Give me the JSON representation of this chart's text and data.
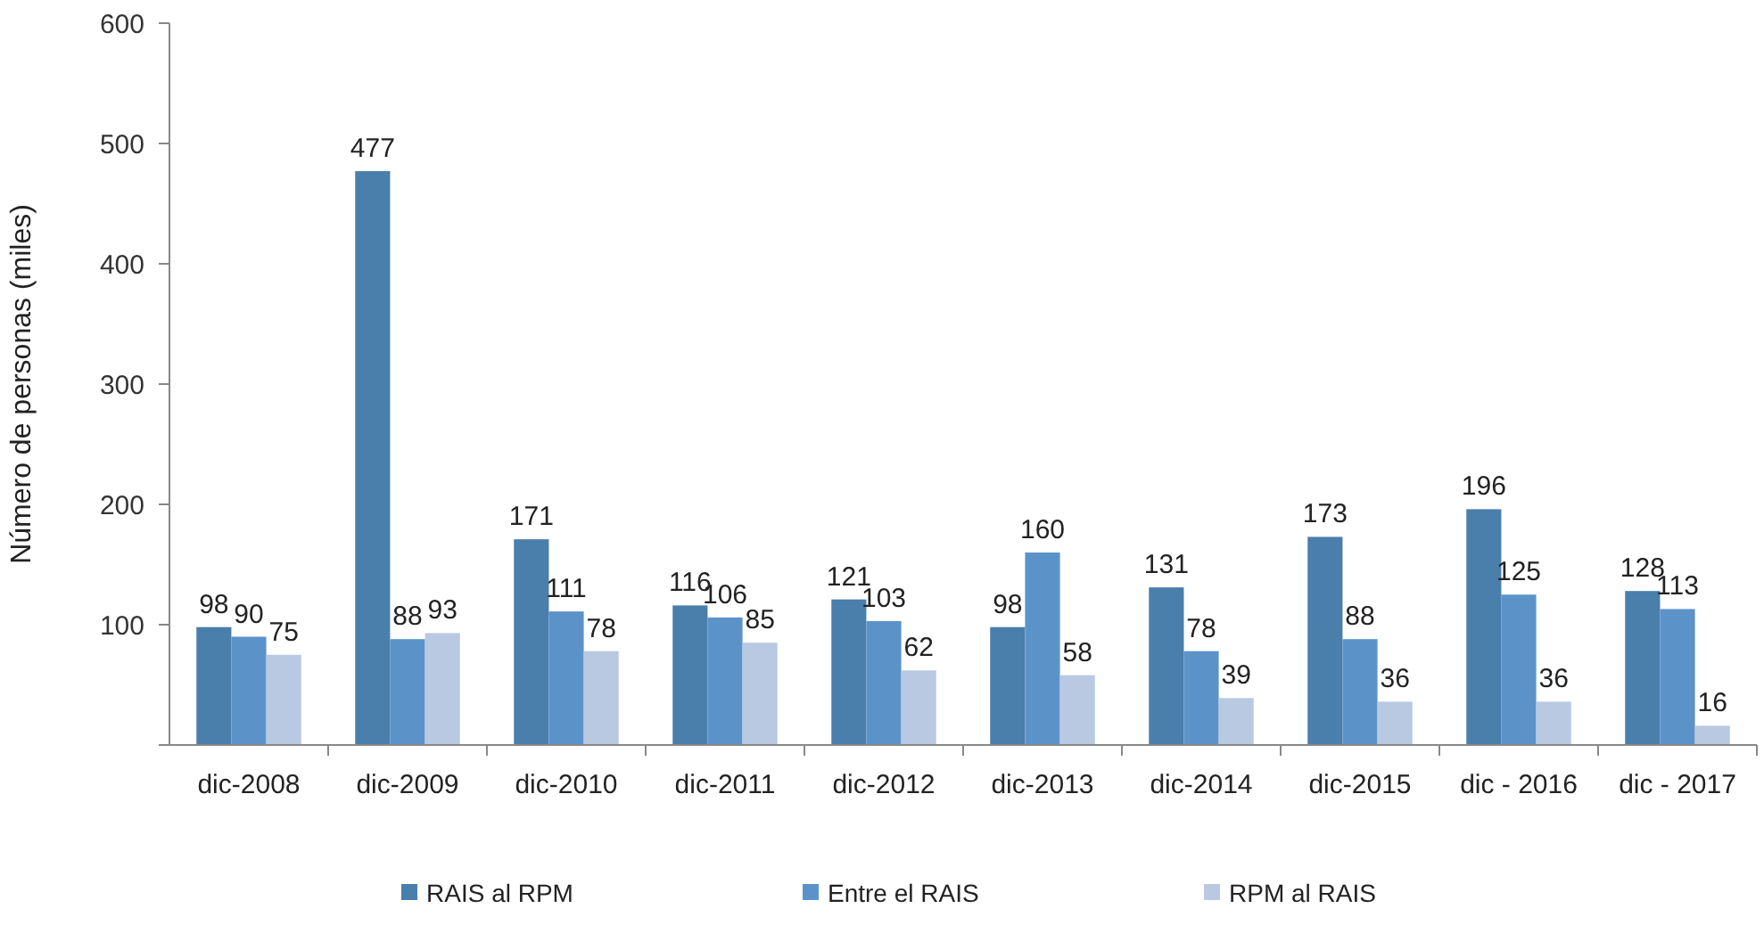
{
  "chart_data": {
    "type": "bar",
    "ylabel": "Número de personas (miles)",
    "categories": [
      "dic-2008",
      "dic-2009",
      "dic-2010",
      "dic-2011",
      "dic-2012",
      "dic-2013",
      "dic-2014",
      "dic-2015",
      "dic - 2016",
      "dic - 2017"
    ],
    "series": [
      {
        "name": "RAIS al RPM",
        "color": "#4a7eab",
        "values": [
          98,
          477,
          171,
          116,
          121,
          98,
          131,
          173,
          196,
          128
        ]
      },
      {
        "name": "Entre el RAIS",
        "color": "#5b93c9",
        "values": [
          90,
          88,
          111,
          106,
          103,
          160,
          78,
          88,
          125,
          113
        ]
      },
      {
        "name": "RPM al RAIS",
        "color": "#b9c9e2",
        "values": [
          75,
          93,
          78,
          85,
          62,
          58,
          39,
          36,
          36,
          16
        ]
      }
    ],
    "ylim": [
      0,
      600
    ],
    "yticks": [
      {
        "value": 0,
        "label": null
      },
      100,
      200,
      300,
      400,
      500,
      600
    ],
    "grid": false,
    "legend": "bottom",
    "data_labels": true
  }
}
